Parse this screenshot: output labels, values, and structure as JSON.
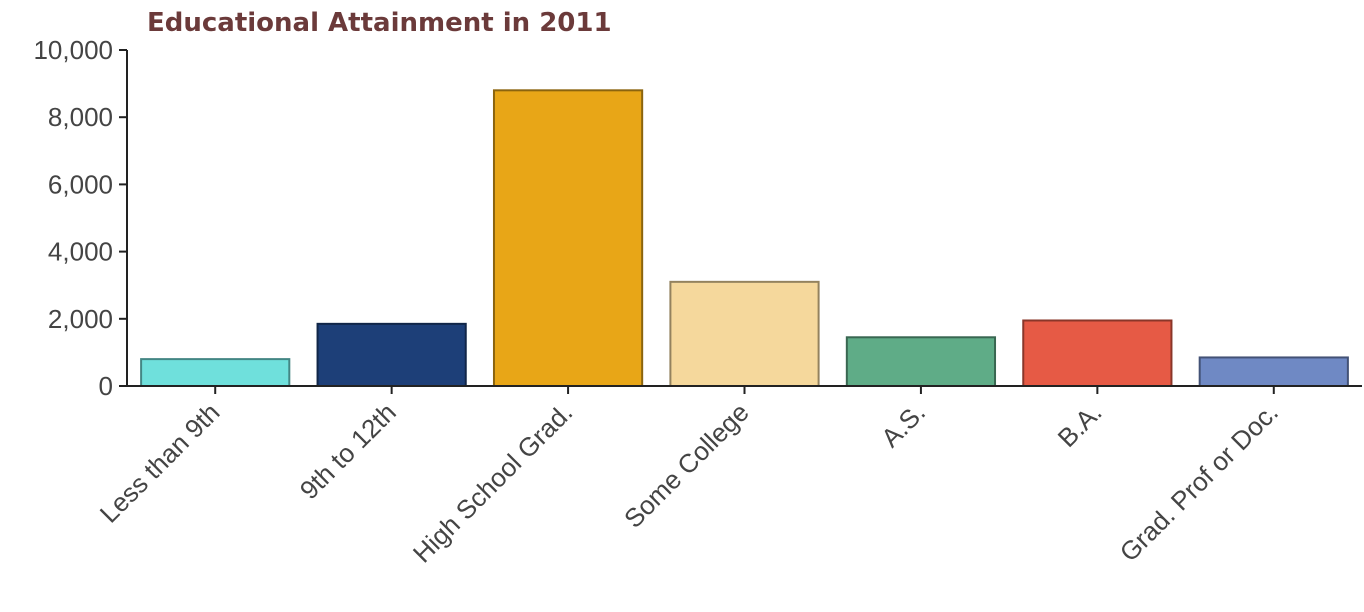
{
  "chart_data": {
    "type": "bar",
    "title": "Educational Attainment in 2011",
    "xlabel": "",
    "ylabel": "",
    "ylim": [
      0,
      10000
    ],
    "yticks": [
      0,
      2000,
      4000,
      6000,
      8000,
      10000
    ],
    "ytick_labels": [
      "0",
      "2,000",
      "4,000",
      "6,000",
      "8,000",
      "10,000"
    ],
    "categories": [
      "Less than 9th",
      "9th to 12th",
      "High School Grad.",
      "Some College",
      "A.S.",
      "B.A.",
      "Grad. Prof or Doc."
    ],
    "values": [
      800,
      1850,
      8800,
      3100,
      1450,
      1950,
      850
    ],
    "colors": [
      "#6fe0dc",
      "#1d3f78",
      "#e8a617",
      "#f5d89c",
      "#5fac87",
      "#e65a45",
      "#6f89c4"
    ],
    "grid": false,
    "legend": "none"
  }
}
